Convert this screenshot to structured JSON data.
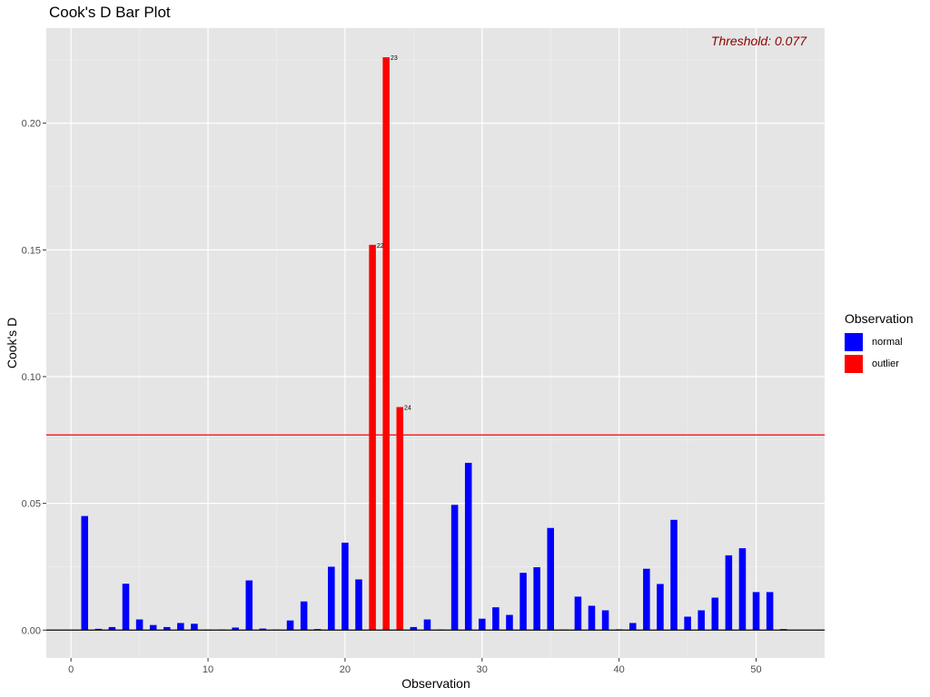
{
  "chart_data": {
    "type": "bar",
    "title": "Cook's D Bar Plot",
    "xlabel": "Observation",
    "ylabel": "Cook's D",
    "xlim": [
      -1.8,
      55
    ],
    "ylim": [
      -0.011,
      0.2375
    ],
    "x_ticks": [
      0,
      10,
      20,
      30,
      40,
      50
    ],
    "y_ticks": [
      0.0,
      0.05,
      0.1,
      0.15,
      0.2
    ],
    "y_tick_labels": [
      "0.00",
      "0.05",
      "0.10",
      "0.15",
      "0.20"
    ],
    "threshold": 0.077,
    "threshold_label": "Threshold: 0.077",
    "legend": {
      "title": "Observation",
      "position": "right",
      "items": [
        {
          "label": "normal",
          "color": "#0000FF"
        },
        {
          "label": "outlier",
          "color": "#FF0000"
        }
      ]
    },
    "colors": {
      "normal": "#0000FF",
      "outlier": "#FF0000",
      "threshold": "#FF0000",
      "panel": "#E5E5E5",
      "grid": "#FFFFFF"
    },
    "grid": true,
    "observations": [
      1,
      2,
      3,
      4,
      5,
      6,
      7,
      8,
      9,
      10,
      11,
      12,
      13,
      14,
      15,
      16,
      17,
      18,
      19,
      20,
      21,
      22,
      23,
      24,
      25,
      26,
      27,
      28,
      29,
      30,
      31,
      32,
      33,
      34,
      35,
      36,
      37,
      38,
      39,
      40,
      41,
      42,
      43,
      44,
      45,
      46,
      47,
      48,
      49,
      50,
      51,
      52
    ],
    "values": [
      0.045,
      0.0005,
      0.0012,
      0.0183,
      0.0042,
      0.002,
      0.0012,
      0.0028,
      0.0025,
      0.0002,
      0.0002,
      0.001,
      0.0196,
      0.0006,
      0.0002,
      0.0038,
      0.0113,
      0.0004,
      0.025,
      0.0345,
      0.02,
      0.152,
      0.226,
      0.088,
      0.0012,
      0.0042,
      0.0002,
      0.0494,
      0.066,
      0.0045,
      0.009,
      0.006,
      0.0226,
      0.0248,
      0.0403,
      0.0002,
      0.0132,
      0.0096,
      0.0078,
      0.0003,
      0.0028,
      0.0242,
      0.0182,
      0.0435,
      0.0053,
      0.0078,
      0.0128,
      0.0295,
      0.0323,
      0.015,
      0.015,
      0.0004
    ],
    "groups": [
      "normal",
      "normal",
      "normal",
      "normal",
      "normal",
      "normal",
      "normal",
      "normal",
      "normal",
      "normal",
      "normal",
      "normal",
      "normal",
      "normal",
      "normal",
      "normal",
      "normal",
      "normal",
      "normal",
      "normal",
      "normal",
      "outlier",
      "outlier",
      "outlier",
      "normal",
      "normal",
      "normal",
      "normal",
      "normal",
      "normal",
      "normal",
      "normal",
      "normal",
      "normal",
      "normal",
      "normal",
      "normal",
      "normal",
      "normal",
      "normal",
      "normal",
      "normal",
      "normal",
      "normal",
      "normal",
      "normal",
      "normal",
      "normal",
      "normal",
      "normal",
      "normal",
      "normal"
    ],
    "data_labels": [
      {
        "x": 22,
        "label": "22"
      },
      {
        "x": 23,
        "label": "23"
      },
      {
        "x": 24,
        "label": "24"
      }
    ]
  }
}
